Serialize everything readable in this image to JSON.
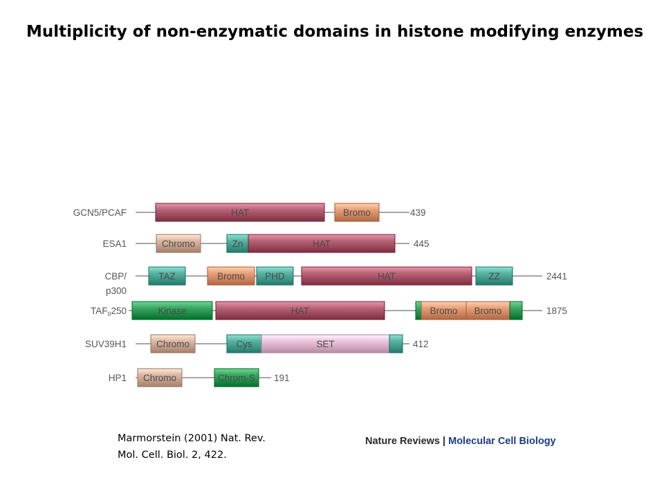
{
  "title": "Multiplicity of non-enzymatic domains in histone modifying enzymes",
  "citation": {
    "line1": "Marmorstein (2001) Nat. Rev.",
    "line2": "Mol. Cell. Biol. 2, 422."
  },
  "branding": {
    "journal": "Nature Reviews",
    "separator": " | ",
    "subtitle": "Molecular Cell Biology"
  },
  "colors": {
    "HAT": "#b86478",
    "Bromo": "#e8a07a",
    "Chromo": "#dcb8a4",
    "teal": "#5ab2a2",
    "Kinase": "#3aa864",
    "SET": "#ecc4dc",
    "line": "#888888"
  },
  "proteins": [
    {
      "name": "GCN5/PCAF",
      "length": "439",
      "domains": [
        {
          "label": "HAT",
          "type": "HAT"
        },
        {
          "label": "Bromo",
          "type": "Bromo"
        }
      ]
    },
    {
      "name": "ESA1",
      "length": "445",
      "domains": [
        {
          "label": "Chromo",
          "type": "Chromo"
        },
        {
          "label": "Zn",
          "type": "teal"
        },
        {
          "label": "HAT",
          "type": "HAT"
        }
      ]
    },
    {
      "name": "CBP/\np300",
      "length": "2441",
      "domains": [
        {
          "label": "TAZ",
          "type": "teal"
        },
        {
          "label": "Bromo",
          "type": "Bromo"
        },
        {
          "label": "PHD",
          "type": "teal"
        },
        {
          "label": "HAT",
          "type": "HAT"
        },
        {
          "label": "ZZ",
          "type": "teal"
        }
      ]
    },
    {
      "name": "TAF",
      "name_sub": "II",
      "name_suffix": "250",
      "length": "1875",
      "domains": [
        {
          "label": "Kinase",
          "type": "Kinase"
        },
        {
          "label": "HAT",
          "type": "HAT"
        },
        {
          "label": "",
          "type": "Kinase"
        },
        {
          "label": "Bromo",
          "type": "Bromo"
        },
        {
          "label": "Bromo",
          "type": "Bromo"
        },
        {
          "label": "",
          "type": "Kinase"
        }
      ]
    },
    {
      "name": "SUV39H1",
      "length": "412",
      "domains": [
        {
          "label": "Chromo",
          "type": "Chromo"
        },
        {
          "label": "Cys",
          "type": "teal"
        },
        {
          "label": "SET",
          "type": "SET"
        },
        {
          "label": "",
          "type": "teal"
        }
      ]
    },
    {
      "name": "HP1",
      "length": "191",
      "domains": [
        {
          "label": "Chromo",
          "type": "Chromo"
        },
        {
          "label": "Chrom-S",
          "type": "Kinase"
        }
      ]
    }
  ]
}
